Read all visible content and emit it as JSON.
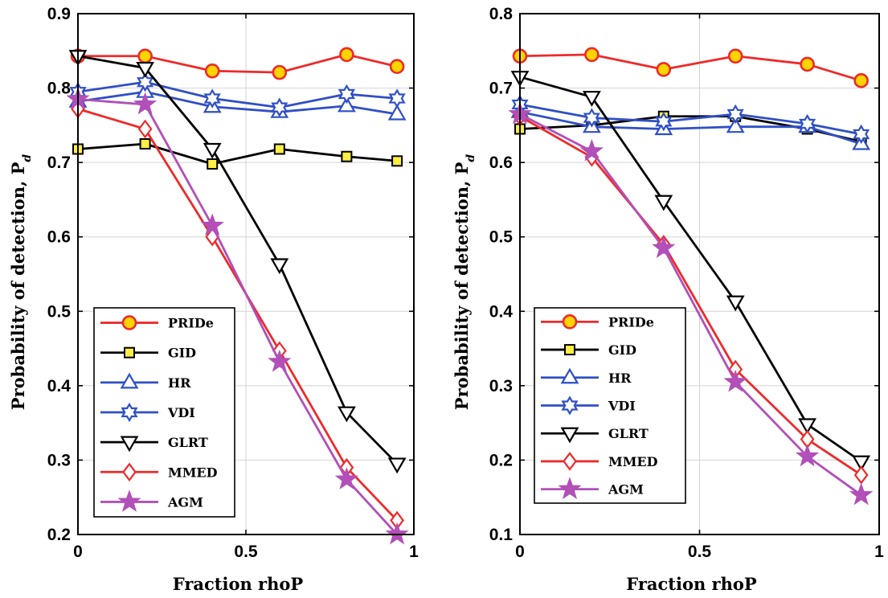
{
  "series_styles": {
    "PRIDe": {
      "color": "#ee2a2a",
      "marker": "circle",
      "fill": "#ffd400"
    },
    "GID": {
      "color": "#000000",
      "marker": "square",
      "fill": "#ffee44"
    },
    "HR": {
      "color": "#2f4fc6",
      "marker": "triangle-up",
      "fill": "#ffffff"
    },
    "VDI": {
      "color": "#2f4fc6",
      "marker": "hexagram",
      "fill": "#ffffff"
    },
    "GLRT": {
      "color": "#000000",
      "marker": "triangle-down",
      "fill": "#ffffff"
    },
    "MMED": {
      "color": "#ee2a2a",
      "marker": "diamond",
      "fill": "#ffffff"
    },
    "AGM": {
      "color": "#b24fb8",
      "marker": "star",
      "fill": "#b24fb8"
    }
  },
  "chart_data": [
    {
      "type": "line",
      "title": "",
      "xlabel": "Fraction rhoP",
      "ylabel": "Probability of detection, P",
      "ylabel_subscript": "d",
      "xlim": [
        0,
        1
      ],
      "ylim": [
        0.2,
        0.9
      ],
      "xticks": [
        0,
        0.5,
        1
      ],
      "xtick_labels": [
        "0",
        "0.5",
        "1"
      ],
      "yticks": [
        0.2,
        0.3,
        0.4,
        0.5,
        0.6,
        0.7,
        0.8,
        0.9
      ],
      "ytick_labels": [
        "0.2",
        "0.3",
        "0.4",
        "0.5",
        "0.6",
        "0.7",
        "0.8",
        "0.9"
      ],
      "grid": true,
      "legend_position": "bottom-left",
      "x": [
        0,
        0.2,
        0.4,
        0.6,
        0.8,
        0.95
      ],
      "series": [
        {
          "name": "PRIDe",
          "values": [
            0.843,
            0.843,
            0.823,
            0.821,
            0.845,
            0.829
          ]
        },
        {
          "name": "GID",
          "values": [
            0.718,
            0.725,
            0.698,
            0.718,
            0.708,
            0.702
          ]
        },
        {
          "name": "HR",
          "values": [
            0.782,
            0.795,
            0.775,
            0.768,
            0.776,
            0.765
          ]
        },
        {
          "name": "VDI",
          "values": [
            0.795,
            0.808,
            0.786,
            0.774,
            0.792,
            0.786
          ]
        },
        {
          "name": "GLRT",
          "values": [
            0.843,
            0.827,
            0.718,
            0.563,
            0.364,
            0.295
          ]
        },
        {
          "name": "MMED",
          "values": [
            0.772,
            0.745,
            0.6,
            0.447,
            0.29,
            0.219
          ]
        },
        {
          "name": "AGM",
          "values": [
            0.785,
            0.778,
            0.615,
            0.432,
            0.274,
            0.2
          ]
        }
      ]
    },
    {
      "type": "line",
      "title": "",
      "xlabel": "Fraction rhoP",
      "ylabel": "Probability of detection, P",
      "ylabel_subscript": "d",
      "xlim": [
        0,
        1
      ],
      "ylim": [
        0.1,
        0.8
      ],
      "xticks": [
        0,
        0.5,
        1
      ],
      "xtick_labels": [
        "0",
        "0.5",
        "1"
      ],
      "yticks": [
        0.1,
        0.2,
        0.3,
        0.4,
        0.5,
        0.6,
        0.7,
        0.8
      ],
      "ytick_labels": [
        "0.1",
        "0.2",
        "0.3",
        "0.4",
        "0.5",
        "0.6",
        "0.7",
        "0.8"
      ],
      "grid": true,
      "legend_position": "bottom-left",
      "x": [
        0,
        0.2,
        0.4,
        0.6,
        0.8,
        0.95
      ],
      "series": [
        {
          "name": "PRIDe",
          "values": [
            0.743,
            0.745,
            0.725,
            0.743,
            0.732,
            0.71
          ]
        },
        {
          "name": "GID",
          "values": [
            0.645,
            0.65,
            0.662,
            0.662,
            0.645,
            0.628
          ]
        },
        {
          "name": "HR",
          "values": [
            0.668,
            0.648,
            0.645,
            0.648,
            0.648,
            0.625
          ]
        },
        {
          "name": "VDI",
          "values": [
            0.678,
            0.66,
            0.655,
            0.665,
            0.652,
            0.638
          ]
        },
        {
          "name": "GLRT",
          "values": [
            0.715,
            0.688,
            0.548,
            0.413,
            0.248,
            0.198
          ]
        },
        {
          "name": "MMED",
          "values": [
            0.662,
            0.607,
            0.49,
            0.322,
            0.228,
            0.18
          ]
        },
        {
          "name": "AGM",
          "values": [
            0.665,
            0.615,
            0.485,
            0.305,
            0.205,
            0.153
          ]
        }
      ]
    }
  ]
}
